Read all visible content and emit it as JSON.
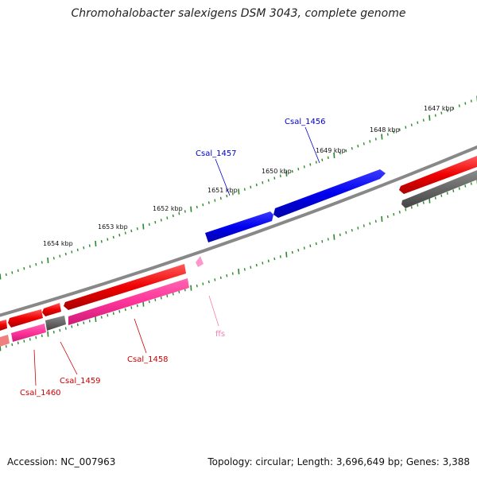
{
  "title": "Chromohalobacter salexigens DSM 3043, complete genome",
  "footer": {
    "accession": "Accession: NC_007963",
    "summary": "Topology: circular; Length: 3,696,649 bp; Genes: 3,388"
  },
  "colors": {
    "forward_cds": "#ee0000",
    "reverse_cds": "#ff3399",
    "selected_cds": "#0000ee",
    "rna": "#ff99cc",
    "other": "#666666",
    "tick": "#2a8a2a",
    "backbone": "#888888"
  },
  "tick_labels": [
    "1647 kbp",
    "1648 kbp",
    "1649 kbp",
    "1650 kbp",
    "1651 kbp",
    "1652 kbp",
    "1653 kbp",
    "1654 kbp"
  ],
  "gene_labels": [
    {
      "name": "Csal_1456",
      "color": "#0000cc"
    },
    {
      "name": "Csal_1457",
      "color": "#0000cc"
    },
    {
      "name": "Csal_1458",
      "color": "#cc0000"
    },
    {
      "name": "Csal_1459",
      "color": "#cc0000"
    },
    {
      "name": "Csal_1460",
      "color": "#cc0000"
    },
    {
      "name": "ffs",
      "color": "#f080b0"
    }
  ]
}
